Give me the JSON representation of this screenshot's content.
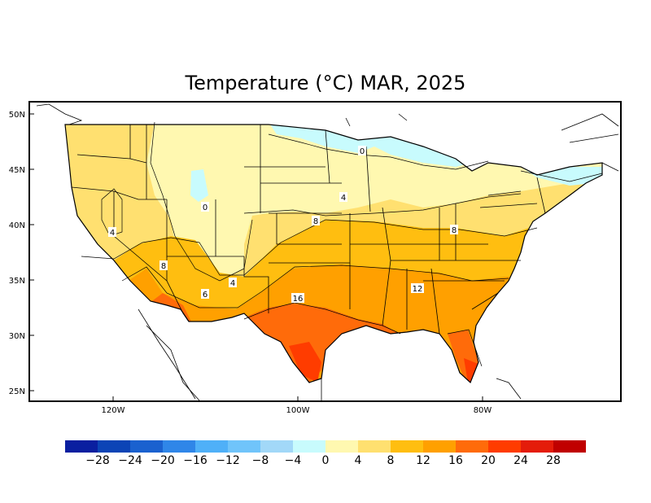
{
  "title": "Temperature (°C) MAR, 2025",
  "map": {
    "lat_ticks": [
      "50N",
      "45N",
      "40N",
      "35N",
      "30N",
      "25N"
    ],
    "lon_ticks": [
      "120W",
      "100W",
      "80W"
    ],
    "contour_labels": [
      "0",
      "0",
      "4",
      "4",
      "4",
      "8",
      "8",
      "8",
      "6",
      "12",
      "16"
    ]
  },
  "colorbar": {
    "colors": [
      "#0a1fa0",
      "#0c44b6",
      "#1a61cf",
      "#2f86e8",
      "#4fb0f8",
      "#70c4fa",
      "#a2d8f8",
      "#c8fbfd",
      "#fff8b0",
      "#ffe070",
      "#ffbe10",
      "#ffa000",
      "#ff6b0a",
      "#ff3c00",
      "#e41c0a",
      "#c00000"
    ],
    "labels": [
      "−28",
      "−24",
      "−20",
      "−16",
      "−12",
      "−8",
      "−4",
      "0",
      "4",
      "8",
      "12",
      "16",
      "20",
      "24",
      "28"
    ]
  }
}
